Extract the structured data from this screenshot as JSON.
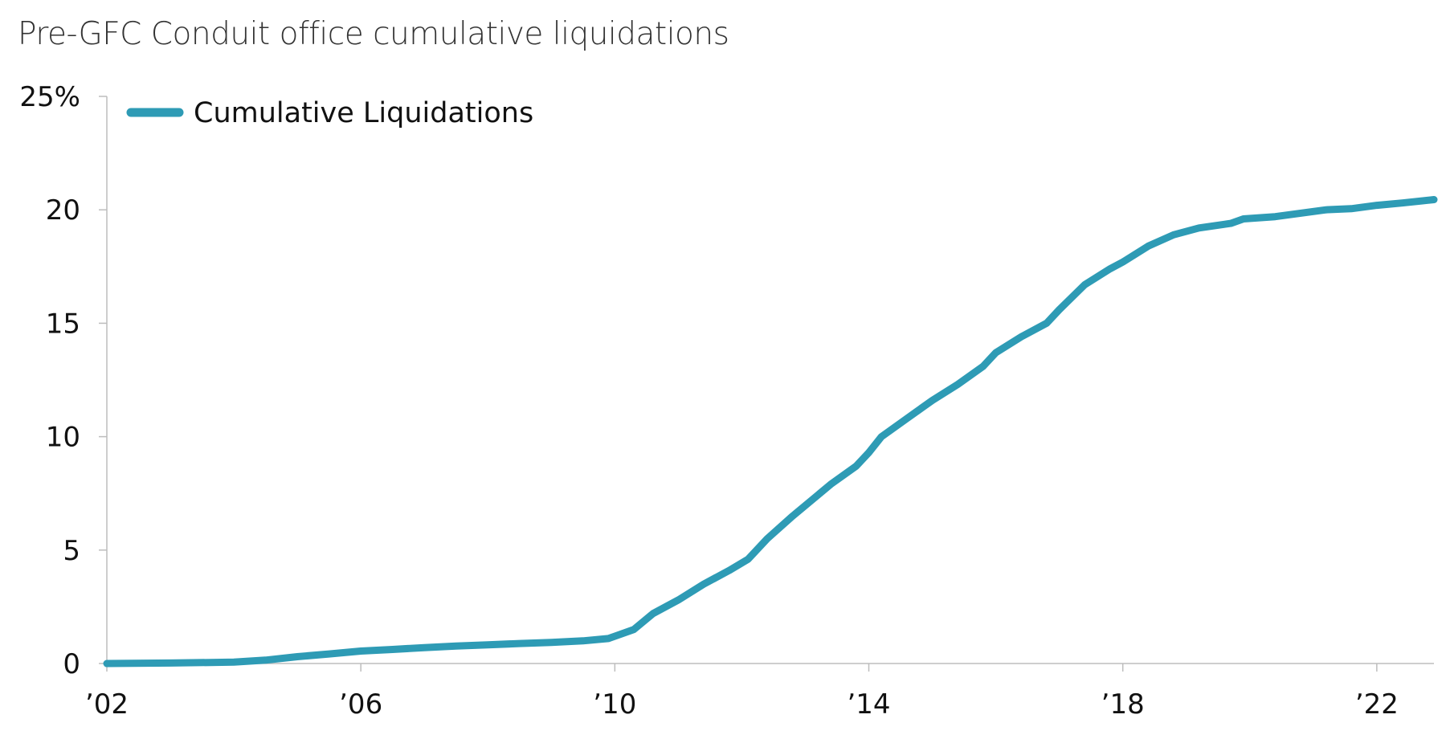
{
  "chart_data": {
    "type": "line",
    "title": "Pre-GFC Conduit office cumulative liquidations",
    "xlabel": "",
    "ylabel": "",
    "xlim": [
      2002,
      2022.9
    ],
    "ylim": [
      0,
      25
    ],
    "x_ticks": [
      2002,
      2006,
      2010,
      2014,
      2018,
      2022
    ],
    "x_tick_labels": [
      "’02",
      "’06",
      "’10",
      "’14",
      "’18",
      "’22"
    ],
    "y_ticks": [
      0,
      5,
      10,
      15,
      20,
      25
    ],
    "y_tick_labels": [
      "0",
      "5",
      "10",
      "15",
      "20",
      "25%"
    ],
    "grid": false,
    "legend_position": "top-left",
    "color": "#2E9BB5",
    "series": [
      {
        "name": "Cumulative Liquidations",
        "x": [
          2002.0,
          2003.0,
          2004.0,
          2004.5,
          2005.0,
          2005.5,
          2006.0,
          2006.5,
          2007.0,
          2007.5,
          2008.0,
          2008.5,
          2009.0,
          2009.5,
          2009.9,
          2010.3,
          2010.6,
          2011.0,
          2011.4,
          2011.8,
          2012.1,
          2012.4,
          2012.8,
          2013.1,
          2013.4,
          2013.8,
          2014.0,
          2014.2,
          2014.6,
          2015.0,
          2015.4,
          2015.8,
          2016.0,
          2016.4,
          2016.8,
          2017.0,
          2017.4,
          2017.8,
          2018.0,
          2018.4,
          2018.8,
          2019.2,
          2019.7,
          2019.9,
          2020.4,
          2020.8,
          2021.2,
          2021.6,
          2022.0,
          2022.4,
          2022.9
        ],
        "y": [
          0.0,
          0.02,
          0.06,
          0.15,
          0.3,
          0.42,
          0.55,
          0.62,
          0.7,
          0.77,
          0.82,
          0.88,
          0.93,
          1.0,
          1.1,
          1.5,
          2.2,
          2.8,
          3.5,
          4.1,
          4.6,
          5.5,
          6.5,
          7.2,
          7.9,
          8.7,
          9.3,
          10.0,
          10.8,
          11.6,
          12.3,
          13.1,
          13.7,
          14.4,
          15.0,
          15.6,
          16.7,
          17.4,
          17.7,
          18.4,
          18.9,
          19.2,
          19.4,
          19.6,
          19.7,
          19.85,
          20.0,
          20.05,
          20.2,
          20.3,
          20.45
        ]
      }
    ]
  }
}
